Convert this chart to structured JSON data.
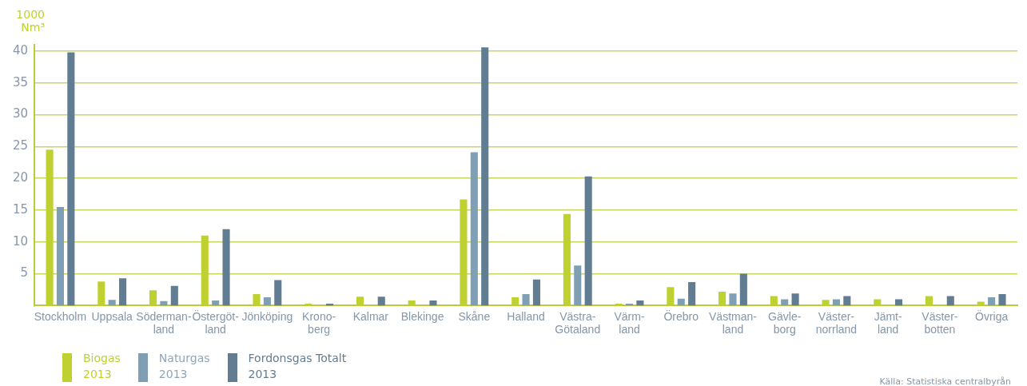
{
  "chart_data": {
    "type": "bar",
    "ylabel": "1000\nNm³",
    "categories": [
      "Stockholm",
      "Uppsala",
      "Söderman-\nland",
      "Östergöt-\nland",
      "Jönköping",
      "Krono-\nberg",
      "Kalmar",
      "Blekinge",
      "Skåne",
      "Halland",
      "Västra-\nGötaland",
      "Värm-\nland",
      "Örebro",
      "Västman-\nland",
      "Gävle-\nborg",
      "Väster-\nnorrland",
      "Jämt-\nland",
      "Väster-\nbotten",
      "Övriga"
    ],
    "series": [
      {
        "name": "Biogas\n2013",
        "color": "#bfd130",
        "values": [
          24.5,
          3.8,
          2.4,
          11.0,
          1.8,
          0.3,
          1.4,
          0.8,
          16.7,
          1.3,
          14.4,
          0.3,
          2.9,
          2.2,
          1.5,
          0.9,
          1.0,
          1.5,
          0.6
        ]
      },
      {
        "name": "Naturgas\n2013",
        "color": "#7f9fb5",
        "values": [
          15.5,
          0.9,
          0.7,
          0.8,
          1.3,
          null,
          null,
          null,
          24.1,
          1.8,
          6.3,
          0.3,
          1.1,
          1.9,
          1.0,
          1.0,
          null,
          null,
          1.3
        ]
      },
      {
        "name": "Fordonsgas Totalt\n2013",
        "color": "#627d91",
        "values": [
          39.8,
          4.3,
          3.1,
          12.0,
          4.0,
          0.3,
          1.4,
          0.8,
          40.6,
          4.1,
          20.3,
          0.8,
          3.7,
          5.0,
          1.9,
          1.5,
          1.0,
          1.5,
          1.8
        ]
      }
    ],
    "ylim": [
      0,
      41
    ],
    "yticks": [
      5,
      10,
      15,
      20,
      25,
      30,
      35,
      40
    ],
    "grid": "y",
    "legend": "bottom left",
    "annotations": [
      "Källa: Statistiska centralbyrån"
    ]
  }
}
